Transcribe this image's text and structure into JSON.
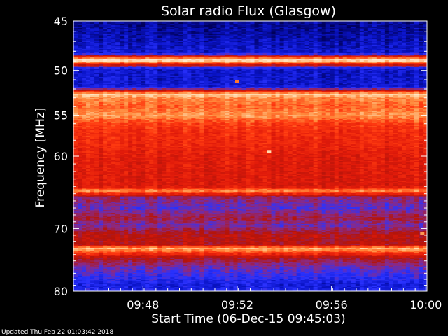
{
  "chart_data": {
    "type": "heatmap",
    "title": "Solar radio Flux (Glasgow)",
    "xlabel": "Start Time (06-Dec-15 09:45:03)",
    "ylabel": "Frequency [MHz]",
    "x_tick_labels": [
      "09:48",
      "09:52",
      "09:56",
      "10:00"
    ],
    "x_tick_minutes": [
      2.95,
      6.95,
      10.95,
      14.95
    ],
    "x_range_minutes": [
      0,
      15
    ],
    "y_tick_labels": [
      "45",
      "50",
      "55",
      "60",
      "70",
      "80"
    ],
    "y_ticks_mhz": [
      45,
      50,
      55,
      60,
      70,
      80
    ],
    "y_range_mhz": [
      45,
      80
    ],
    "y_scale": "log",
    "y_axis_inverted": true,
    "grid": false,
    "legend": "none",
    "colormap": [
      "#00005a",
      "#0a14c8",
      "#2a32ff",
      "#8a2a86",
      "#b4140a",
      "#e01a0a",
      "#ff3a10",
      "#ff8a3c",
      "#ffd2a0",
      "#fff0d8"
    ],
    "spectrum_mhz": [
      [
        45.0,
        0.05
      ],
      [
        46.0,
        0.07
      ],
      [
        47.0,
        0.1
      ],
      [
        48.2,
        0.14
      ],
      [
        48.9,
        0.98
      ],
      [
        49.8,
        0.13
      ],
      [
        50.5,
        0.12
      ],
      [
        51.8,
        0.14
      ],
      [
        52.6,
        0.9
      ],
      [
        53.0,
        0.78
      ],
      [
        54.0,
        0.72
      ],
      [
        55.0,
        0.8
      ],
      [
        56.0,
        0.66
      ],
      [
        57.0,
        0.62
      ],
      [
        58.5,
        0.6
      ],
      [
        60.0,
        0.56
      ],
      [
        62.0,
        0.55
      ],
      [
        64.0,
        0.54
      ],
      [
        64.6,
        0.78
      ],
      [
        65.5,
        0.36
      ],
      [
        67.0,
        0.28
      ],
      [
        68.5,
        0.4
      ],
      [
        69.5,
        0.3
      ],
      [
        71.0,
        0.46
      ],
      [
        72.5,
        0.45
      ],
      [
        73.0,
        0.85
      ],
      [
        74.5,
        0.44
      ],
      [
        76.0,
        0.3
      ],
      [
        78.0,
        0.2
      ],
      [
        79.0,
        0.15
      ],
      [
        80.0,
        0.18
      ]
    ],
    "transient_events": [
      {
        "minute": 6.95,
        "freq_mhz": 51.2,
        "level": 0.75
      },
      {
        "minute": 8.3,
        "freq_mhz": 59.4,
        "level": 0.92
      },
      {
        "minute": 14.8,
        "freq_mhz": 70.7,
        "level": 0.8
      }
    ]
  },
  "footer": {
    "updated": "Updated Thu Feb 22 01:03:42 2018"
  }
}
